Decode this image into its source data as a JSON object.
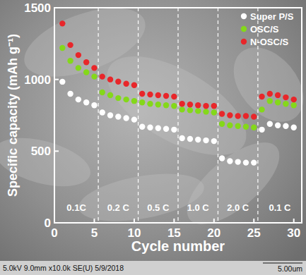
{
  "chart_data": {
    "type": "scatter",
    "x_label": "Cycle number",
    "y_label": "Specific capacity (mAh g⁻¹)",
    "x": [
      1,
      2,
      3,
      4,
      5,
      6,
      7,
      8,
      9,
      10,
      11,
      12,
      13,
      14,
      15,
      16,
      17,
      18,
      19,
      20,
      21,
      22,
      23,
      24,
      25,
      26,
      27,
      28,
      29,
      30
    ],
    "series": [
      {
        "name": "Super P/S",
        "color": "#ffffff",
        "marker": "circle",
        "values": [
          984,
          900,
          860,
          840,
          820,
          770,
          750,
          740,
          730,
          720,
          670,
          665,
          660,
          655,
          650,
          590,
          585,
          580,
          575,
          570,
          450,
          430,
          425,
          420,
          420,
          650,
          690,
          680,
          675,
          665
        ]
      },
      {
        "name": "OSC/S",
        "color": "#84d81a",
        "marker": "circle",
        "values": [
          1220,
          1130,
          1080,
          1050,
          1020,
          910,
          890,
          870,
          860,
          850,
          840,
          830,
          825,
          820,
          815,
          790,
          785,
          780,
          775,
          770,
          690,
          680,
          675,
          670,
          665,
          790,
          850,
          840,
          830,
          820
        ]
      },
      {
        "name": "N-OSC/S",
        "color": "#e8262a",
        "marker": "circle",
        "values": [
          1390,
          1240,
          1170,
          1120,
          1080,
          1020,
          1000,
          985,
          970,
          960,
          900,
          895,
          890,
          885,
          880,
          830,
          825,
          820,
          815,
          815,
          760,
          750,
          745,
          745,
          740,
          880,
          900,
          890,
          875,
          860
        ]
      }
    ],
    "xlim": [
      0,
      31
    ],
    "xticks": [
      0,
      5,
      10,
      15,
      20,
      25,
      30
    ],
    "ylim": [
      0,
      1500
    ],
    "yticks": [
      0,
      500,
      1000,
      1500
    ],
    "dividers": [
      5.5,
      10.5,
      15.5,
      20.5,
      25.5
    ],
    "annotations": [
      "0.1C",
      "0.2 C",
      "0.5 C",
      "1.0 C",
      "2.0 C",
      "0.1 C"
    ],
    "legend": "top-right",
    "grid": false,
    "footer": {
      "info": "5.0kV 9.0mm x10.0k SE(U) 5/9/2018",
      "scale": "5.00um"
    }
  }
}
